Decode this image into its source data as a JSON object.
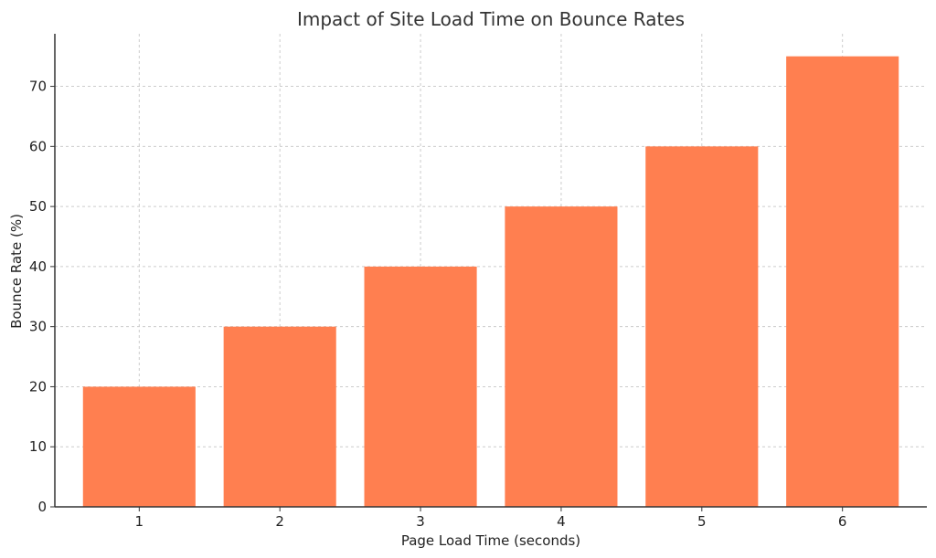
{
  "chart_data": {
    "type": "bar",
    "title": "Impact of Site Load Time on Bounce Rates",
    "xlabel": "Page Load Time (seconds)",
    "ylabel": "Bounce Rate (%)",
    "categories": [
      "1",
      "2",
      "3",
      "4",
      "5",
      "6"
    ],
    "values": [
      20,
      30,
      40,
      50,
      60,
      75
    ],
    "ylim": [
      0,
      78.75
    ],
    "yticks": [
      0,
      10,
      20,
      30,
      40,
      50,
      60,
      70
    ],
    "grid": true,
    "bar_color": "#FF7F50"
  }
}
